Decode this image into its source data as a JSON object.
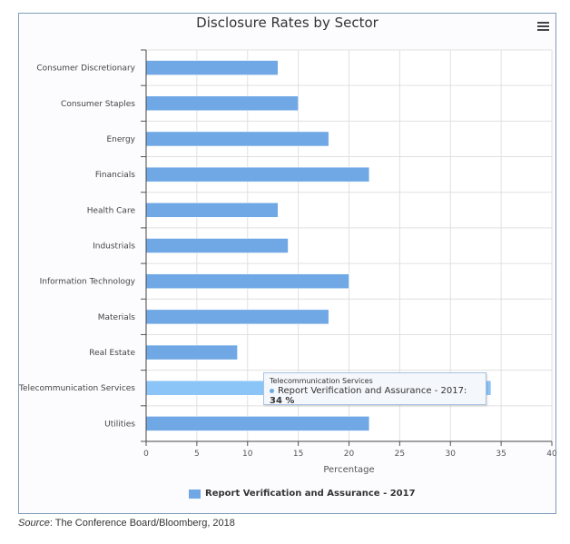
{
  "chart_data": {
    "type": "bar",
    "orientation": "horizontal",
    "title": "Disclosure Rates by Sector",
    "categories": [
      "Consumer Discretionary",
      "Consumer Staples",
      "Energy",
      "Financials",
      "Health Care",
      "Industrials",
      "Information Technology",
      "Materials",
      "Real Estate",
      "Telecommunication Services",
      "Utilities"
    ],
    "series": [
      {
        "name": "Report Verification and Assurance - 2017",
        "values": [
          13,
          15,
          18,
          22,
          13,
          14,
          20,
          18,
          9,
          34,
          22
        ],
        "color": "#6fa8e4"
      }
    ],
    "xlabel": "Percentage",
    "ylabel": "",
    "xlim": [
      0,
      40
    ],
    "xticks": [
      "0",
      "5",
      "10",
      "15",
      "20",
      "25",
      "30",
      "35",
      "40"
    ],
    "grid": true,
    "legend": "bottom-center",
    "highlight_color": "#8bc4f7"
  },
  "tooltip": {
    "header": "Telecommunication Services",
    "label": "Report Verification and Assurance - 2017: ",
    "value": "34 %"
  },
  "legend_label": "Report Verification and Assurance - 2017",
  "source": {
    "prefix": "Source",
    "text": ": The Conference Board/Bloomberg, 2018"
  },
  "menu_icon": "hamburger-icon"
}
